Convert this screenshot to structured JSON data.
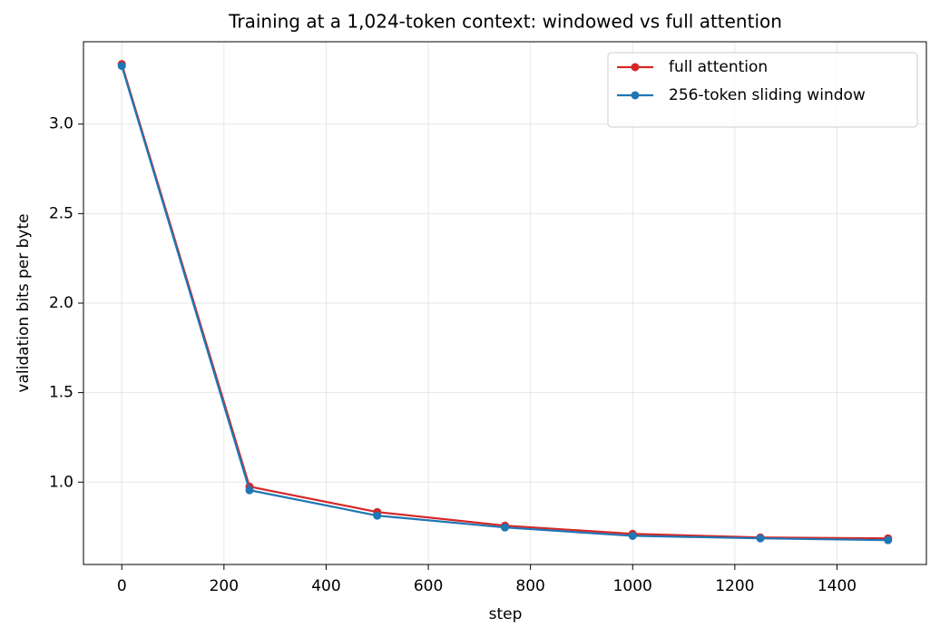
{
  "chart_data": {
    "type": "line",
    "title": "Training at a 1,024-token context: windowed vs full attention",
    "x_label": "step",
    "y_label": "validation bits per byte",
    "x": [
      0,
      250,
      500,
      750,
      1000,
      1250,
      1500
    ],
    "series": [
      {
        "name": "full attention",
        "color": "#d62728",
        "values": [
          3.335,
          0.975,
          0.833,
          0.757,
          0.711,
          0.691,
          0.686
        ]
      },
      {
        "name": "256-token sliding window",
        "color": "#1f77b4",
        "values": [
          3.325,
          0.955,
          0.813,
          0.747,
          0.7,
          0.686,
          0.676
        ]
      }
    ],
    "xlim": [
      -75,
      1575
    ],
    "xticks": [
      0,
      200,
      400,
      600,
      800,
      1000,
      1200,
      1400
    ],
    "ylim": [
      0.54,
      3.46
    ],
    "yticks": [
      {
        "value": 1,
        "label": "1.0"
      },
      1.5,
      {
        "value": 2,
        "label": "2.0"
      },
      2.5,
      {
        "value": 3,
        "label": "3.0"
      }
    ],
    "grid": true,
    "legend": "upper-right"
  }
}
